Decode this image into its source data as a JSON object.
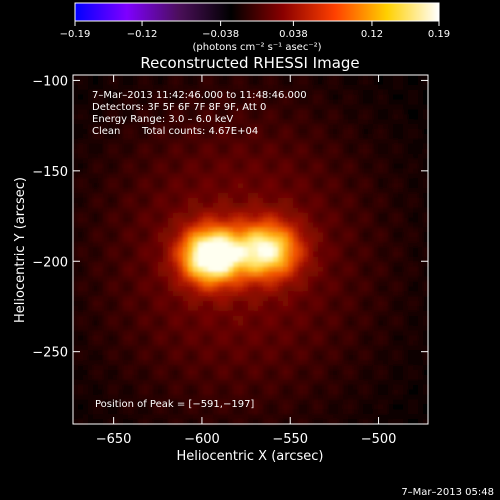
{
  "chart_data": {
    "type": "heatmap",
    "title": "Reconstructed RHESSI Image",
    "xlabel": "Heliocentric X (arcsec)",
    "ylabel": "Heliocentric Y (arcsec)",
    "xlim": [
      -673,
      -472
    ],
    "ylim": [
      -290,
      -97
    ],
    "x_ticks": [
      -650,
      -600,
      -550,
      -500
    ],
    "y_ticks": [
      -100,
      -150,
      -200,
      -250
    ],
    "x_tick_labels": [
      "−650",
      "−600",
      "−550",
      "−500"
    ],
    "y_tick_labels": [
      "−100",
      "−150",
      "−200",
      "−250"
    ],
    "colorbar": {
      "range": [
        -0.19,
        0.19
      ],
      "tick_values": [
        -0.19,
        -0.12,
        -0.038,
        0.038,
        0.12,
        0.19
      ],
      "tick_labels": [
        "−0.19",
        "−0.12",
        "−0.038",
        "0.038",
        "0.12",
        "0.19"
      ],
      "unit_label": "(photons cm⁻² s⁻¹ asec⁻²)",
      "colors": [
        "#0000ff",
        "#7f00ff",
        "#4b0f5a",
        "#000000",
        "#8a0000",
        "#ff4000",
        "#ffd000",
        "#ffffff"
      ]
    },
    "sources": [
      {
        "x": -595,
        "y": -197,
        "peak": 1.0,
        "sigma_x": 12,
        "sigma_y": 11
      },
      {
        "x": -563,
        "y": -194,
        "peak": 0.78,
        "sigma_x": 13,
        "sigma_y": 11
      }
    ],
    "peak_position": [
      -591,
      -197
    ],
    "annotations": {
      "time_range": "7–Mar–2013 11:42:46.000 to 11:48:46.000",
      "detectors": "Detectors: 3F 5F 6F 7F 8F 9F, Att 0",
      "energy_range": "Energy Range: 3.0 – 6.0 keV",
      "clean_label": "Clean",
      "total_counts": "Total counts: 4.67E+04",
      "peak_text": "Position of Peak = [−591,−197]"
    },
    "footer_timestamp": "7–Mar–2013 05:48"
  }
}
